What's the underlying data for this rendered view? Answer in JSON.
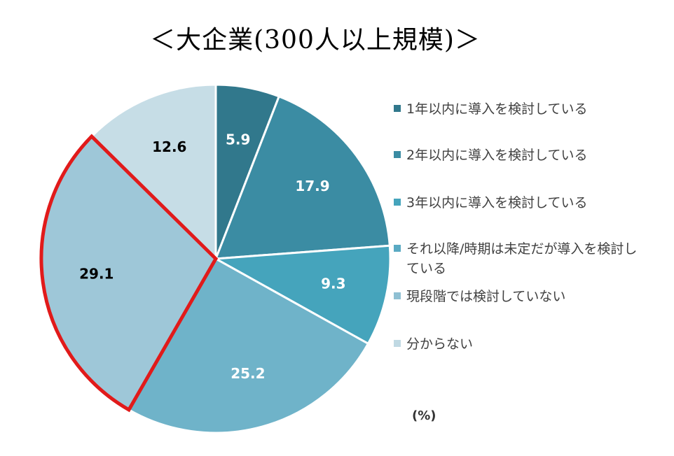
{
  "chart_data": {
    "type": "pie",
    "title": "＜大企業(300人以上規模)＞",
    "unit": "(%)",
    "slices": [
      {
        "name": "1年以内に導入を検討している",
        "value": 5.9,
        "label": "5.9",
        "color": "#31788c",
        "label_color": "#ffffff"
      },
      {
        "name": "2年以内に導入を検討している",
        "value": 17.9,
        "label": "17.9",
        "color": "#3b8ca3",
        "label_color": "#ffffff"
      },
      {
        "name": "3年以内に導入を検討している",
        "value": 9.3,
        "label": "9.3",
        "color": "#45a4bc",
        "label_color": "#ffffff"
      },
      {
        "name": "それ以降/時期は未定だが導入を検討している",
        "value": 25.2,
        "label": "25.2",
        "color": "#6fb3c9",
        "label_color": "#ffffff"
      },
      {
        "name": "現段階では検討していない",
        "value": 29.1,
        "label": "29.1",
        "color": "#9ec7d8",
        "label_color": "#000000",
        "highlighted": true,
        "highlight_color": "#e11a1a"
      },
      {
        "name": "分からない",
        "value": 12.6,
        "label": "12.6",
        "color": "#c6dde6",
        "label_color": "#000000"
      }
    ],
    "legend": [
      {
        "text": "1年以内に導入を検討している",
        "color": "#31788c"
      },
      {
        "text": "2年以内に導入を検討している",
        "color": "#3b8ca3"
      },
      {
        "text": "3年以内に導入を検討している",
        "color": "#45a4bc"
      },
      {
        "text": "それ以降/時期は未定だが導入を検討している",
        "color": "#5aaac3"
      },
      {
        "text": "現段階では検討していない",
        "color": "#8fc0d3"
      },
      {
        "text": "分からない",
        "color": "#c0d9e3"
      }
    ],
    "legend_position": "right"
  }
}
